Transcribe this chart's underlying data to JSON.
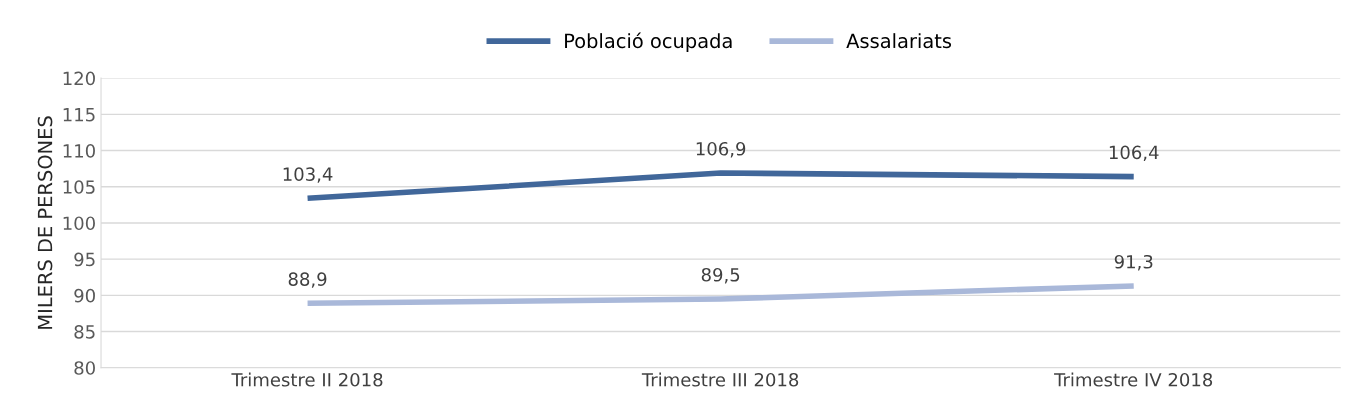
{
  "chart_data": {
    "type": "line",
    "ylabel": "MILERS DE PERSONES",
    "categories": [
      "Trimestre II 2018",
      "Trimestre III 2018",
      "Trimestre IV 2018"
    ],
    "series": [
      {
        "name": "Població ocupada",
        "color": "#41679a",
        "values": [
          103.4,
          106.9,
          106.4
        ],
        "value_labels": [
          "103,4",
          "106,9",
          "106,4"
        ]
      },
      {
        "name": "Assalariats",
        "color": "#a9b8d9",
        "values": [
          88.9,
          89.5,
          91.3
        ],
        "value_labels": [
          "88,9",
          "89,5",
          "91,3"
        ]
      }
    ],
    "ylim": [
      80,
      120
    ],
    "yticks": [
      80,
      85,
      90,
      95,
      100,
      105,
      110,
      115,
      120
    ],
    "grid": "y",
    "legend": "top",
    "marker": "none",
    "line_style": "solid"
  }
}
